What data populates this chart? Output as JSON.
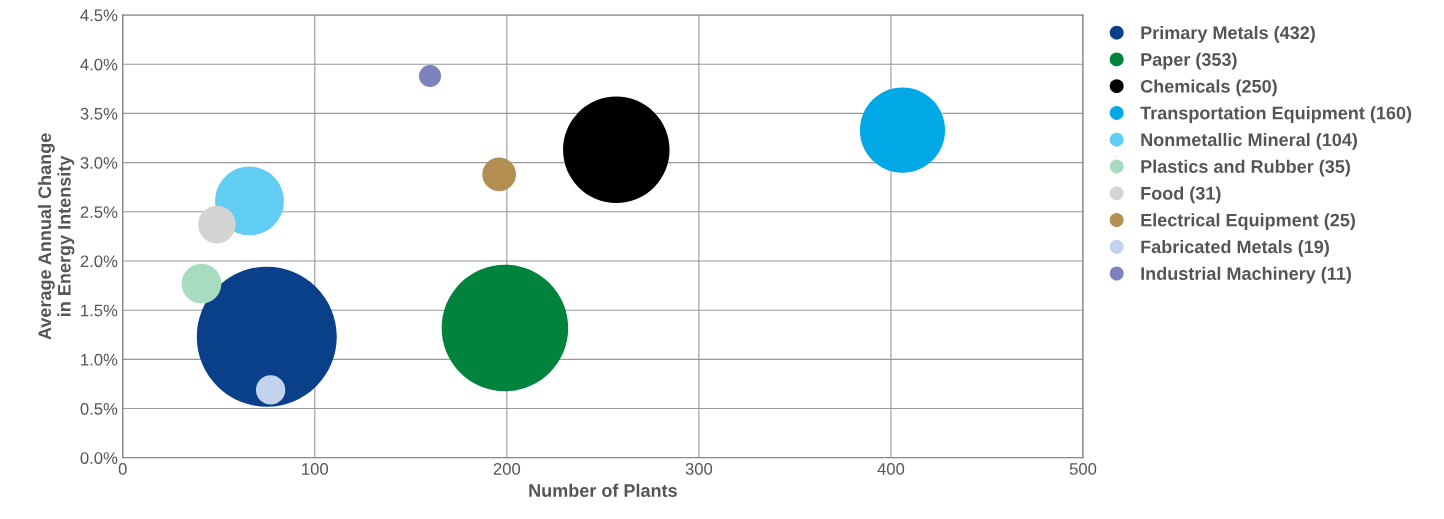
{
  "chart_data": {
    "type": "bubble",
    "xlabel": "Number of Plants",
    "ylabel": "Average Annual Change\nin Energy Intensity",
    "xlim": [
      0,
      500
    ],
    "xticks": [
      0,
      100,
      200,
      300,
      400,
      500
    ],
    "ylim": [
      0,
      4.5
    ],
    "yticks": [
      {
        "value": 0,
        "label": "0.0%"
      },
      {
        "value": 0.5,
        "label": "0.5%"
      },
      {
        "value": 1,
        "label": "1.0%"
      },
      {
        "value": 1.5,
        "label": "1.5%"
      },
      {
        "value": 2,
        "label": "2.0%"
      },
      {
        "value": 2.5,
        "label": "2.5%"
      },
      {
        "value": 3,
        "label": "3.0%"
      },
      {
        "value": 3.5,
        "label": "3.5%"
      },
      {
        "value": 4,
        "label": "4.0%"
      },
      {
        "value": 4.5,
        "label": "4.5%"
      }
    ],
    "grid": true,
    "legend": "right",
    "series": [
      {
        "name": "Primary Metals (432)",
        "color": "#0a3f8a",
        "x": [
          75
        ],
        "values": [
          1.23
        ],
        "sizes": [
          1
        ]
      },
      {
        "name": "Paper (353)",
        "color": "#00843d",
        "x": [
          199
        ],
        "values": [
          1.32
        ],
        "sizes": [
          0.817
        ]
      },
      {
        "name": "Chemicals (250)",
        "color": "#000000",
        "x": [
          257
        ],
        "values": [
          3.13
        ],
        "sizes": [
          0.579
        ]
      },
      {
        "name": "Transportation Equipment (160)",
        "color": "#00a9e6",
        "x": [
          406
        ],
        "values": [
          3.33
        ],
        "sizes": [
          0.37
        ]
      },
      {
        "name": "Nonmetallic Mineral (104)",
        "color": "#62cdf2",
        "x": [
          66
        ],
        "values": [
          2.61
        ],
        "sizes": [
          0.241
        ]
      },
      {
        "name": "Plastics and Rubber (35)",
        "color": "#a8dcc0",
        "x": [
          41
        ],
        "values": [
          1.77
        ],
        "sizes": [
          0.081
        ]
      },
      {
        "name": "Food (31)",
        "color": "#d4d4d4",
        "x": [
          49
        ],
        "values": [
          2.37
        ],
        "sizes": [
          0.072
        ]
      },
      {
        "name": "Electrical Equipment (25)",
        "color": "#b38f52",
        "x": [
          196
        ],
        "values": [
          2.88
        ],
        "sizes": [
          0.058
        ]
      },
      {
        "name": "Fabricated Metals (19)",
        "color": "#c3d3ee",
        "x": [
          77
        ],
        "values": [
          0.69
        ],
        "sizes": [
          0.044
        ]
      },
      {
        "name": "Industrial Machinery (11)",
        "color": "#7b82bc",
        "x": [
          160
        ],
        "values": [
          3.88
        ],
        "sizes": [
          0.025
        ]
      }
    ]
  }
}
